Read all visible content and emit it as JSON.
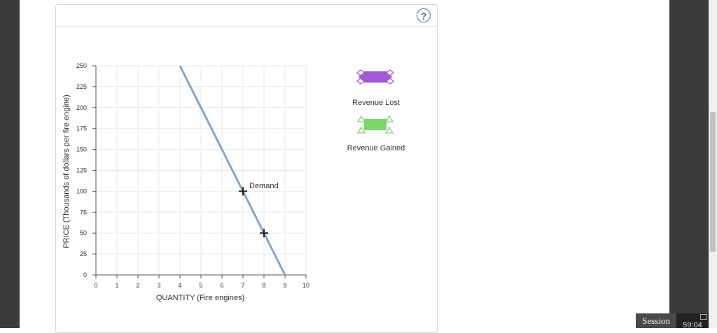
{
  "panel": {
    "help_label": "?"
  },
  "palette": {
    "revenue_lost": "#a259d9",
    "revenue_gained": "#7cd76a",
    "demand_line": "#7fa8d0"
  },
  "palette_items": [
    {
      "label": "Revenue Lost",
      "icon": "purple-diamond-rectangle-icon"
    },
    {
      "label": "Revenue Gained",
      "icon": "green-triangle-rectangle-icon"
    }
  ],
  "session": {
    "label": "Session",
    "timer": "59:04"
  },
  "chart_data": {
    "type": "line",
    "xlabel": "QUANTITY (Fire engines)",
    "ylabel": "PRICE (Thousands of dollars per fire engine)",
    "xlim": [
      0,
      10
    ],
    "ylim": [
      0,
      250
    ],
    "xticks": [
      "0",
      "1",
      "2",
      "3",
      "4",
      "5",
      "6",
      "7",
      "8",
      "9",
      "10"
    ],
    "yticks": [
      "0",
      "25",
      "50",
      "75",
      "100",
      "125",
      "150",
      "175",
      "200",
      "225",
      "250"
    ],
    "grid": true,
    "series": [
      {
        "name": "Demand",
        "x": [
          4,
          9
        ],
        "y": [
          250,
          0
        ]
      }
    ],
    "points": [
      {
        "x": 7,
        "y": 100
      },
      {
        "x": 8,
        "y": 50
      }
    ]
  }
}
